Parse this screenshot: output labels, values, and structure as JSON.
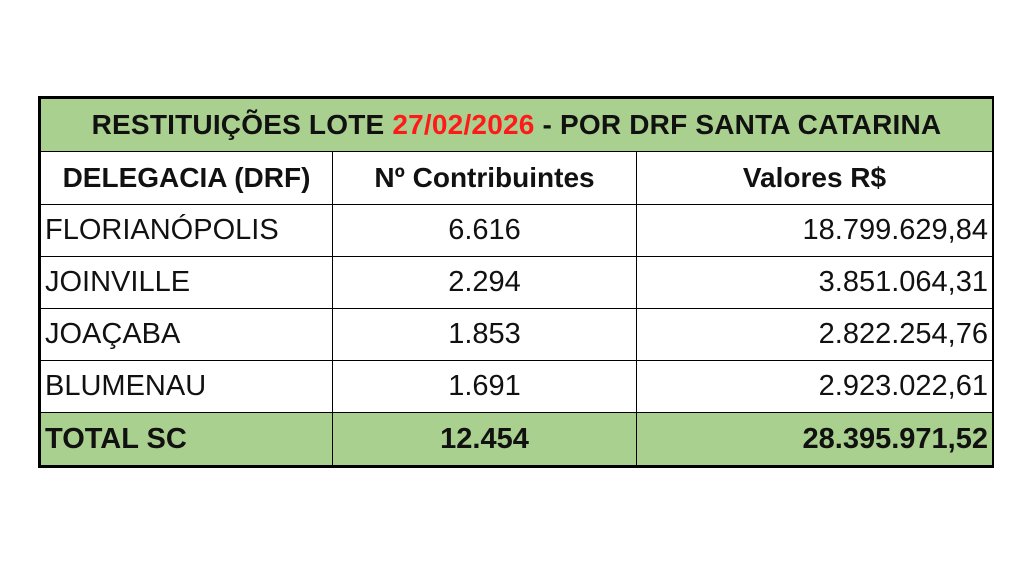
{
  "title": {
    "prefix": "RESTITUIÇÕES LOTE ",
    "date": "27/02/2026",
    "suffix": " - POR DRF SANTA CATARINA",
    "date_color": "#ff1a1a",
    "background_color": "#a9d08e"
  },
  "columns": [
    "DELEGACIA (DRF)",
    "Nº Contribuintes",
    "Valores R$"
  ],
  "rows": [
    {
      "drf": "FLORIANÓPOLIS",
      "contribuintes": "6.616",
      "valores": "18.799.629,84"
    },
    {
      "drf": "JOINVILLE",
      "contribuintes": "2.294",
      "valores": "3.851.064,31"
    },
    {
      "drf": "JOAÇABA",
      "contribuintes": "1.853",
      "valores": "2.822.254,76"
    },
    {
      "drf": "BLUMENAU",
      "contribuintes": "1.691",
      "valores": "2.923.022,61"
    }
  ],
  "total": {
    "drf": "TOTAL SC",
    "contribuintes": "12.454",
    "valores": "28.395.971,52"
  }
}
